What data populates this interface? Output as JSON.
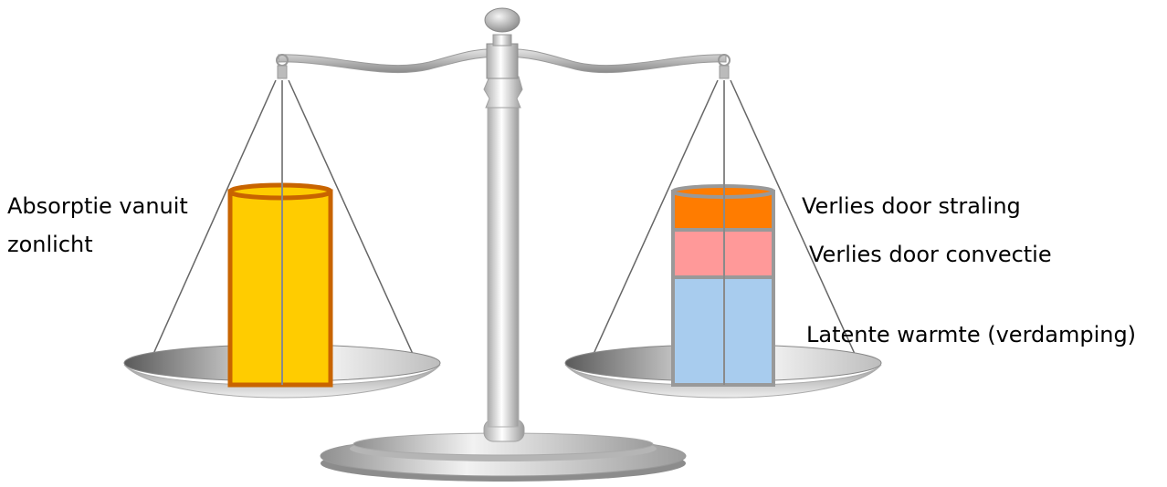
{
  "labels": {
    "absorption_line1": "Absorptie vanuit",
    "absorption_line2": "zonlicht",
    "radiation": "Verlies door straling",
    "convection": "Verlies door convectie",
    "latent": "Latente warmte (verdamping)"
  },
  "colors": {
    "absorption_fill": "#ffcc00",
    "absorption_border": "#c86400",
    "radiation_fill": "#ff7c00",
    "convection_fill": "#ff9999",
    "latent_fill": "#a8ccee",
    "cylinder_border": "#999999"
  }
}
